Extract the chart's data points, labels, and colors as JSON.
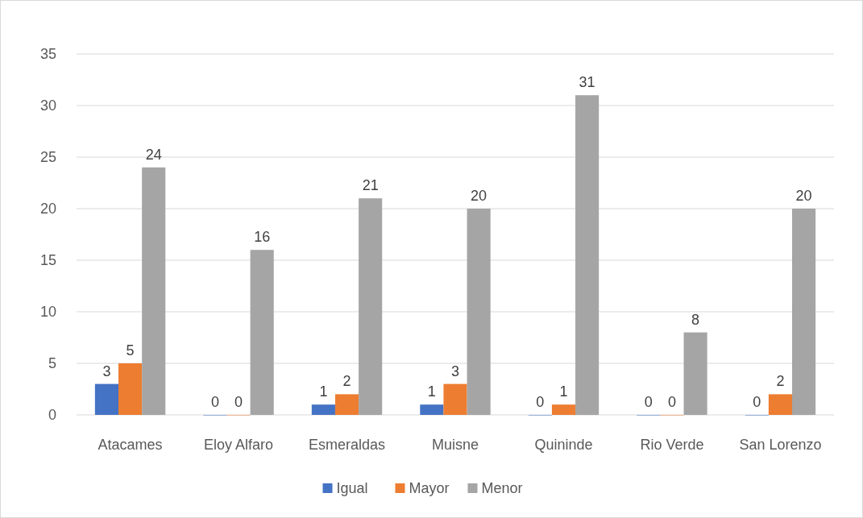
{
  "chart_data": {
    "type": "bar",
    "categories": [
      "Atacames",
      "Eloy Alfaro",
      "Esmeraldas",
      "Muisne",
      "Quininde",
      "Rio Verde",
      "San Lorenzo"
    ],
    "series": [
      {
        "name": "Igual",
        "color": "#4472c4",
        "values": [
          3,
          0,
          1,
          1,
          0,
          0,
          0
        ]
      },
      {
        "name": "Mayor",
        "color": "#ed7d31",
        "values": [
          5,
          0,
          2,
          3,
          1,
          0,
          2
        ]
      },
      {
        "name": "Menor",
        "color": "#a5a5a5",
        "values": [
          24,
          16,
          21,
          20,
          31,
          8,
          20
        ]
      }
    ],
    "ylim": [
      0,
      35
    ],
    "yticks": [
      0,
      5,
      10,
      15,
      20,
      25,
      30,
      35
    ],
    "grid": "y",
    "legend": "bottom",
    "data_labels": true
  }
}
